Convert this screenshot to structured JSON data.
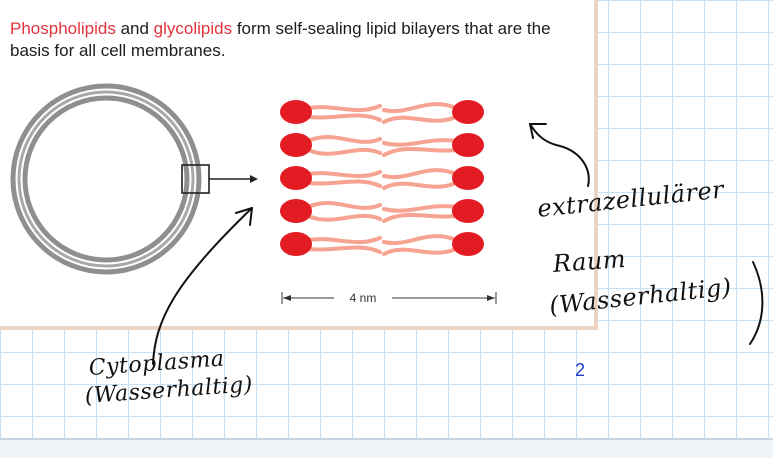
{
  "caption": {
    "term1": "Phospholipids",
    "and_word": " and ",
    "term2": "glycolipids",
    "rest": " form self-sealing lipid bilayers that are the basis for all cell membranes."
  },
  "diagram": {
    "scale_label": "4 nm",
    "lipid_rows": 5,
    "colors": {
      "headgroup": "#e31b23",
      "tail": "#f6a391",
      "membrane": "#9c9c9c",
      "highlight_text": "#e3333c"
    }
  },
  "annotations": {
    "extracellular_line1": "extrazellulärer",
    "extracellular_line2": "Raum",
    "extracellular_line3": "(Wasserhaltig)",
    "cytoplasm_line1": "Cytoplasma",
    "cytoplasm_line2": "(Wasserhaltig)"
  },
  "page_number": "2"
}
